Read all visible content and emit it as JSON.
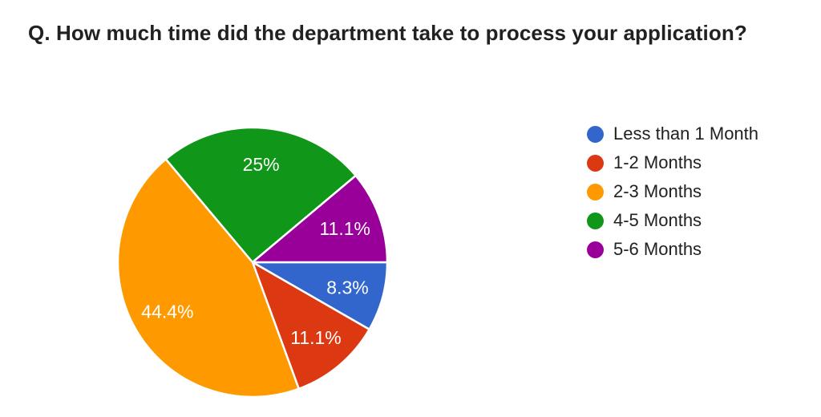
{
  "header": {
    "title": "Q. How much time did the department take to process your application?"
  },
  "chart_data": {
    "type": "pie",
    "title": "Q. How much time did the department take to process your application?",
    "categories": [
      "Less than 1 Month",
      "1-2 Months",
      "2-3 Months",
      "4-5 Months",
      "5-6 Months"
    ],
    "values": [
      8.3,
      11.1,
      44.4,
      25,
      11.1
    ],
    "value_labels": [
      "8.3%",
      "11.1%",
      "44.4%",
      "25%",
      "11.1%"
    ],
    "colors": [
      "#3366cc",
      "#dc3912",
      "#ff9900",
      "#109618",
      "#990099"
    ],
    "start_angle_deg": 0,
    "direction": "clockwise",
    "slice_border_color": "#ffffff",
    "label_color": "#ffffff",
    "label_radius_fraction": 0.73,
    "legend_position": "right",
    "background_color": "#ffffff",
    "title_color": "#212121",
    "legend_text_color": "#212121"
  }
}
